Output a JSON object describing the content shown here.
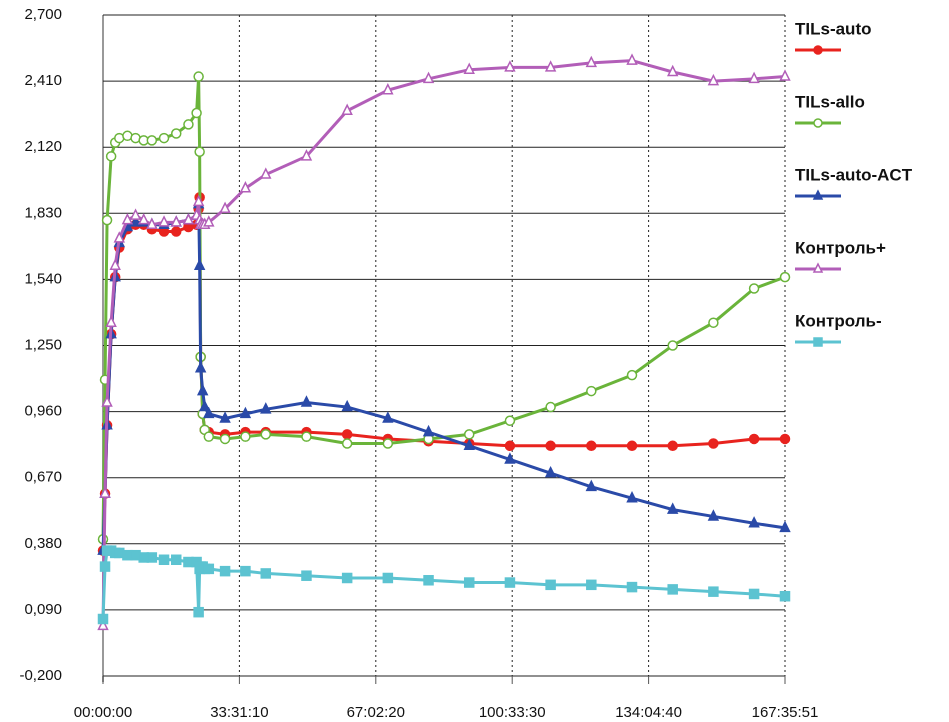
{
  "chart_data": {
    "type": "line",
    "grid": true,
    "legend": "right",
    "xlim": [
      0,
      603351
    ],
    "xticks": [
      {
        "value": 0,
        "label": "00:00:00"
      },
      {
        "value": 120670,
        "label": "33:31:10"
      },
      {
        "value": 241340,
        "label": "67:02:20"
      },
      {
        "value": 362010,
        "label": "100:33:30"
      },
      {
        "value": 482680,
        "label": "134:04:40"
      },
      {
        "value": 603351,
        "label": "167:35:51"
      }
    ],
    "ylim": [
      -0.2,
      2.7
    ],
    "yticks": [
      {
        "value": -0.2,
        "label": "-0,200"
      },
      {
        "value": 0.09,
        "label": "0,090"
      },
      {
        "value": 0.38,
        "label": "0,380"
      },
      {
        "value": 0.67,
        "label": "0,670"
      },
      {
        "value": 0.96,
        "label": "0,960"
      },
      {
        "value": 1.25,
        "label": "1,250"
      },
      {
        "value": 1.54,
        "label": "1,540"
      },
      {
        "value": 1.83,
        "label": "1,830"
      },
      {
        "value": 2.12,
        "label": "2,120"
      },
      {
        "value": 2.41,
        "label": "2,410"
      },
      {
        "value": 2.7,
        "label": "2,700"
      }
    ],
    "x": [
      0,
      1800,
      3600,
      7200,
      10800,
      14400,
      21600,
      28800,
      36000,
      43200,
      54000,
      64800,
      75600,
      82800,
      84600,
      85500,
      86400,
      88200,
      90000,
      93600,
      108000,
      126000,
      144000,
      180000,
      216000,
      252000,
      288000,
      324000,
      360000,
      396000,
      432000,
      468000,
      504000,
      540000,
      576000,
      603351
    ],
    "series": [
      {
        "name": "TILs-auto",
        "color": "#e8231e",
        "marker": "circle",
        "filled": true,
        "values": [
          0.35,
          0.6,
          0.9,
          1.3,
          1.55,
          1.68,
          1.76,
          1.78,
          1.78,
          1.76,
          1.75,
          1.75,
          1.77,
          1.78,
          1.85,
          1.9,
          1.2,
          0.95,
          0.88,
          0.87,
          0.86,
          0.87,
          0.87,
          0.87,
          0.86,
          0.84,
          0.83,
          0.82,
          0.81,
          0.81,
          0.81,
          0.81,
          0.81,
          0.82,
          0.84,
          0.84
        ]
      },
      {
        "name": "TILs-allo",
        "color": "#6ab43a",
        "marker": "circle",
        "filled": false,
        "values": [
          0.4,
          1.1,
          1.8,
          2.08,
          2.14,
          2.16,
          2.17,
          2.16,
          2.15,
          2.15,
          2.16,
          2.18,
          2.22,
          2.27,
          2.43,
          2.1,
          1.2,
          0.95,
          0.88,
          0.85,
          0.84,
          0.85,
          0.86,
          0.85,
          0.82,
          0.82,
          0.84,
          0.86,
          0.92,
          0.98,
          1.05,
          1.12,
          1.25,
          1.35,
          1.5,
          1.55
        ]
      },
      {
        "name": "TILs-auto-ACT",
        "color": "#2a4aa8",
        "marker": "triangle",
        "filled": true,
        "values": [
          0.35,
          0.6,
          0.9,
          1.3,
          1.55,
          1.7,
          1.77,
          1.79,
          1.79,
          1.78,
          1.78,
          1.79,
          1.8,
          1.82,
          1.87,
          1.6,
          1.15,
          1.05,
          0.98,
          0.95,
          0.93,
          0.95,
          0.97,
          1.0,
          0.98,
          0.93,
          0.87,
          0.81,
          0.75,
          0.69,
          0.63,
          0.58,
          0.53,
          0.5,
          0.47,
          0.45
        ]
      },
      {
        "name": "Контроль+",
        "color": "#b25eb8",
        "marker": "triangle",
        "filled": false,
        "values": [
          0.02,
          0.6,
          1.0,
          1.35,
          1.6,
          1.72,
          1.8,
          1.82,
          1.8,
          1.78,
          1.79,
          1.79,
          1.8,
          1.82,
          1.88,
          1.8,
          1.78,
          1.78,
          1.78,
          1.79,
          1.85,
          1.94,
          2.0,
          2.08,
          2.28,
          2.37,
          2.42,
          2.46,
          2.47,
          2.47,
          2.49,
          2.5,
          2.45,
          2.41,
          2.42,
          2.43
        ]
      },
      {
        "name": "Контроль-",
        "color": "#5cc3d1",
        "marker": "square",
        "filled": true,
        "values": [
          0.05,
          0.28,
          0.35,
          0.35,
          0.34,
          0.34,
          0.33,
          0.33,
          0.32,
          0.32,
          0.31,
          0.31,
          0.3,
          0.3,
          0.08,
          0.27,
          0.28,
          0.28,
          0.27,
          0.27,
          0.26,
          0.26,
          0.25,
          0.24,
          0.23,
          0.23,
          0.22,
          0.21,
          0.21,
          0.2,
          0.2,
          0.19,
          0.18,
          0.17,
          0.16,
          0.15
        ]
      }
    ]
  }
}
